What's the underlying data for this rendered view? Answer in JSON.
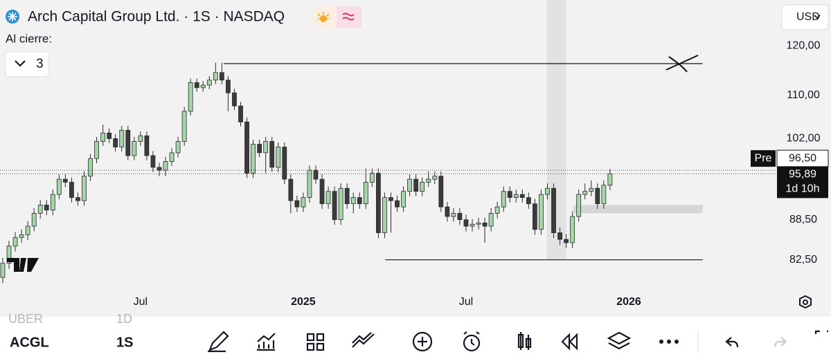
{
  "header": {
    "title": "Arch Capital Group Ltd. · 1S · NASDAQ",
    "close_label": "Al cierre:",
    "close_count": "3",
    "currency": "USD"
  },
  "chart_data": {
    "type": "candlestick",
    "log_scale": true,
    "xlim": [
      -0.44,
      123.45
    ],
    "ylim": [
      78,
      130
    ],
    "yticks": [
      {
        "value": 120,
        "label": "120,00"
      },
      {
        "value": 110,
        "label": "110,00"
      },
      {
        "value": 102,
        "label": "102,00"
      },
      {
        "value": 88.5,
        "label": "88,50"
      },
      {
        "value": 82.5,
        "label": "82,50"
      }
    ],
    "xticks": [
      {
        "value": 22,
        "label": "Jul"
      },
      {
        "value": 48,
        "label": "2025"
      },
      {
        "value": 74,
        "label": "Jul"
      },
      {
        "value": 100,
        "label": "2026"
      }
    ],
    "open": [
      80.0,
      82.0,
      84.5,
      85.8,
      86.2,
      87.5,
      89.5,
      90.8,
      90.0,
      92.5,
      95.0,
      94.5,
      92.0,
      91.5,
      95.5,
      98.5,
      101.5,
      103.0,
      102.0,
      100.5,
      103.5,
      99.0,
      101.5,
      102.5,
      99.0,
      97.0,
      96.5,
      98.0,
      99.5,
      101.5,
      107.0,
      112.5,
      111.5,
      112.0,
      113.0,
      114.5,
      113.0,
      110.5,
      108.0,
      105.0,
      96.0,
      101.0,
      99.5,
      101.5,
      97.0,
      100.5,
      95.0,
      91.5,
      90.5,
      92.0,
      96.5,
      95.0,
      91.0,
      93.0,
      88.5,
      93.5,
      91.0,
      92.0,
      91.0,
      94.5,
      96.0,
      86.5,
      92.0,
      91.5,
      90.5,
      93.0,
      95.0,
      93.0,
      94.5,
      95.0,
      95.5,
      90.5,
      89.0,
      89.5,
      88.5,
      87.5,
      87.8,
      88.0,
      87.5,
      89.5,
      90.5,
      93.0,
      92.0,
      92.5,
      92.0,
      91.0,
      87.0,
      92.5,
      93.5,
      86.5,
      85.5,
      85.0,
      89.0,
      92.5,
      93.0,
      93.5,
      91.0,
      94.0
    ],
    "high": [
      82.8,
      85.3,
      86.6,
      87.0,
      88.3,
      90.3,
      91.6,
      91.6,
      93.3,
      95.8,
      95.8,
      95.3,
      92.8,
      96.3,
      99.3,
      102.3,
      104.5,
      103.8,
      102.8,
      104.3,
      104.3,
      102.3,
      103.3,
      103.3,
      99.8,
      97.8,
      98.8,
      100.3,
      102.3,
      107.8,
      113.3,
      113.3,
      112.8,
      113.8,
      116.5,
      116.5,
      113.8,
      111.3,
      108.8,
      105.8,
      101.8,
      101.8,
      102.3,
      102.3,
      101.3,
      101.3,
      95.8,
      92.3,
      92.8,
      97.3,
      97.3,
      95.8,
      93.8,
      93.8,
      94.3,
      94.3,
      92.8,
      92.8,
      96.8,
      96.8,
      96.8,
      92.8,
      92.8,
      92.3,
      93.8,
      95.8,
      95.8,
      95.3,
      96.3,
      96.3,
      96.3,
      91.3,
      90.3,
      90.3,
      89.3,
      88.6,
      88.8,
      88.8,
      90.3,
      91.3,
      93.8,
      93.8,
      93.3,
      93.3,
      92.8,
      91.8,
      93.3,
      94.3,
      94.3,
      87.3,
      86.3,
      89.8,
      93.3,
      94.3,
      94.8,
      94.3,
      94.8,
      96.7
    ],
    "low": [
      79.2,
      81.2,
      83.7,
      85.0,
      85.4,
      86.7,
      88.7,
      89.2,
      89.2,
      91.7,
      93.7,
      91.2,
      90.7,
      90.7,
      94.7,
      97.7,
      100.7,
      101.2,
      99.7,
      99.7,
      98.2,
      98.2,
      100.7,
      98.2,
      96.2,
      95.5,
      95.5,
      97.2,
      98.7,
      100.7,
      106.2,
      110.7,
      110.7,
      111.2,
      112.2,
      112.2,
      107.0,
      107.2,
      104.2,
      95.2,
      95.2,
      98.7,
      96.0,
      96.2,
      96.2,
      94.2,
      89.5,
      89.7,
      89.7,
      91.2,
      94.2,
      90.2,
      90.2,
      87.7,
      87.7,
      90.2,
      89.5,
      90.2,
      90.2,
      93.7,
      85.7,
      85.7,
      86.5,
      89.7,
      89.7,
      92.2,
      92.2,
      92.2,
      93.7,
      94.2,
      89.7,
      88.2,
      88.2,
      87.7,
      86.7,
      86.7,
      87.0,
      85.0,
      86.7,
      88.7,
      89.7,
      91.2,
      91.2,
      91.2,
      90.2,
      86.2,
      86.2,
      91.7,
      85.7,
      84.7,
      84.2,
      84.2,
      88.2,
      91.7,
      92.2,
      90.2,
      90.2,
      93.2
    ],
    "close": [
      82.0,
      84.5,
      85.8,
      86.2,
      87.5,
      89.5,
      90.8,
      90.0,
      92.5,
      95.0,
      94.5,
      92.0,
      91.5,
      95.5,
      98.5,
      101.5,
      103.0,
      102.0,
      100.5,
      103.5,
      99.0,
      101.5,
      102.5,
      99.0,
      97.0,
      96.5,
      98.0,
      99.5,
      101.5,
      107.0,
      112.5,
      111.5,
      112.0,
      113.0,
      114.5,
      113.0,
      110.5,
      108.0,
      105.0,
      96.0,
      101.0,
      99.5,
      101.5,
      97.0,
      100.5,
      95.0,
      91.5,
      90.5,
      92.0,
      96.5,
      95.0,
      91.0,
      93.0,
      88.5,
      93.5,
      91.0,
      92.0,
      91.0,
      94.5,
      96.0,
      86.5,
      92.0,
      91.5,
      90.5,
      93.0,
      95.0,
      93.0,
      94.5,
      95.0,
      95.5,
      90.5,
      89.0,
      89.5,
      88.5,
      87.5,
      87.8,
      88.0,
      87.5,
      89.5,
      90.5,
      93.0,
      92.0,
      92.5,
      92.0,
      91.0,
      87.0,
      92.5,
      93.5,
      86.5,
      85.5,
      85.0,
      89.0,
      92.5,
      93.0,
      93.5,
      91.0,
      94.0,
      95.9
    ],
    "up_color": "#a5d6a7",
    "down_color": "#3b3b3b",
    "pre_label": "Pre",
    "pre_price": {
      "value": 96.5,
      "label": "96,50"
    },
    "last_price": {
      "value": 95.89,
      "label": "95,89"
    },
    "countdown": "1d 10h",
    "drawings": {
      "lines": [
        {
          "y": 116.3,
          "x": [
            35.3,
            111.8
          ]
        },
        {
          "y": 82.5,
          "x": [
            61.1,
            111.8
          ]
        }
      ],
      "zone": {
        "y": [
          89.5,
          90.8
        ],
        "x": [
          91.2,
          111.8
        ]
      },
      "band": {
        "x": [
          86.9,
          90.0
        ],
        "y": [
          82.5,
          130
        ]
      }
    }
  },
  "watchlist": [
    {
      "symbol": "UBER",
      "interval": "1D"
    },
    {
      "symbol": "ACGL",
      "interval": "1S"
    }
  ]
}
